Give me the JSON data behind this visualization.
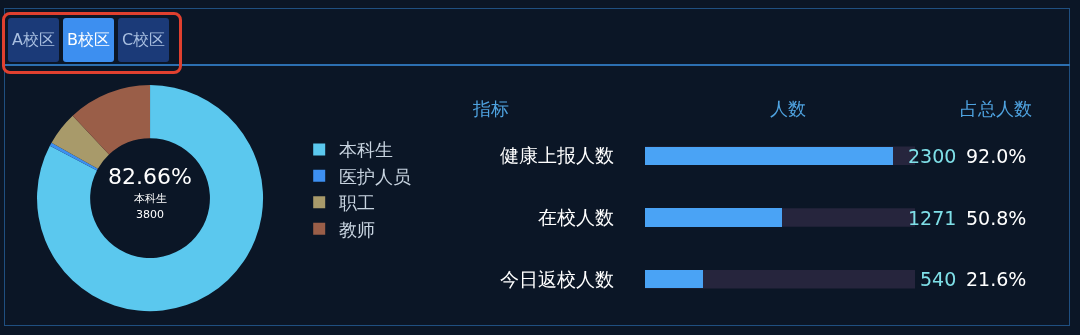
{
  "chart_data": [
    {
      "type": "donut",
      "categories": [
        "本科生",
        "医护人员",
        "职工",
        "教师"
      ],
      "values": [
        82.66,
        0.5,
        4.84,
        12
      ],
      "colors": [
        "#5bc8ee",
        "#3d8ff0",
        "#a89a6a",
        "#9a5e48"
      ],
      "legend": "right",
      "annotations": [
        "82.66%",
        "本科生",
        "3800"
      ]
    },
    {
      "type": "bar",
      "orientation": "horizontal",
      "categories": [
        "健康上报人数",
        "在校人数",
        "今日返校人数"
      ],
      "values": [
        92.0,
        50.8,
        21.6
      ],
      "color": "#4aa3f5",
      "value_labels": [
        "92.0%",
        "50.8%",
        "21.6%"
      ],
      "xlim": [
        0,
        100
      ],
      "tick_labels": "y",
      "annotations": [
        "指标",
        "人数",
        "占总人数",
        "2300",
        "1271",
        "540"
      ]
    },
    {
      "type": "other",
      "annotations": [
        "A校区",
        "B校区",
        "C校区"
      ]
    }
  ]
}
